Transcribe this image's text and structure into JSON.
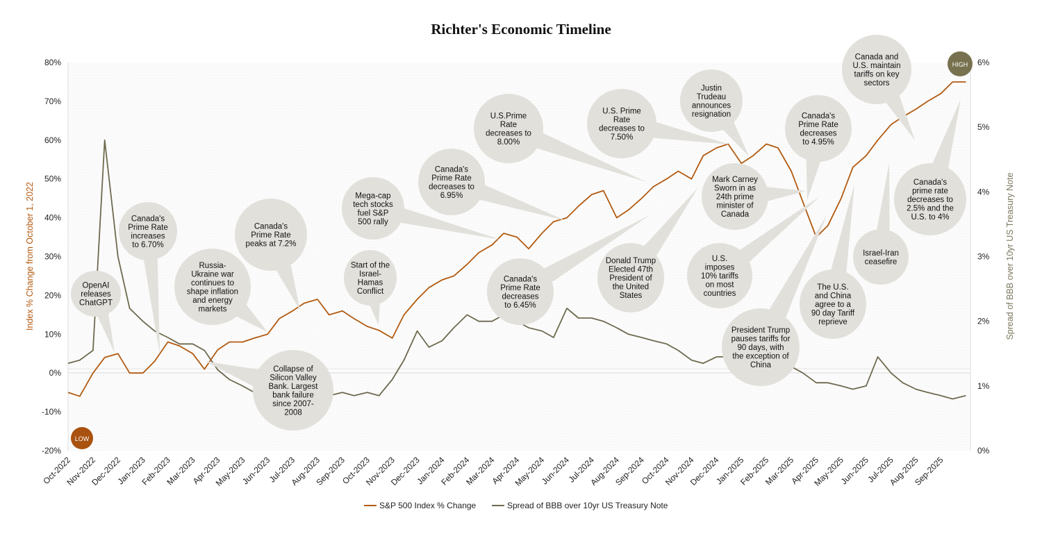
{
  "chart_data": {
    "type": "line",
    "title": "Richter's Economic Timeline",
    "ylabel_left": "Index % Change from October 1, 2022",
    "ylabel_right": "Spread of BBB over 10yr US Treasury Note",
    "ylim_left": [
      -20,
      80
    ],
    "ylim_right": [
      0,
      6
    ],
    "yticks_left": [
      "-20%",
      "-10%",
      "0%",
      "10%",
      "20%",
      "30%",
      "40%",
      "50%",
      "60%",
      "70%",
      "80%"
    ],
    "yticks_right": [
      "0%",
      "1%",
      "2%",
      "3%",
      "4%",
      "5%",
      "6%"
    ],
    "xticks": [
      "Oct-2022",
      "Nov-2022",
      "Dec-2022",
      "Jan-2023",
      "Feb-2023",
      "Mar-2023",
      "Apr-2023",
      "May-2023",
      "Jun-2023",
      "Jul-2023",
      "Aug-2023",
      "Sep-2023",
      "Oct-2023",
      "Nov-2023",
      "Dec-2023",
      "Jan-2024",
      "Feb-2024",
      "Mar-2024",
      "Apr-2024",
      "May-2024",
      "Jun-2024",
      "Jul-2024",
      "Aug-2024",
      "Sep-2024",
      "Oct-2024",
      "Nov-2024",
      "Dec-2024",
      "Jan-2025",
      "Feb-2025",
      "Mar-2025",
      "Apr-2025",
      "May-2025",
      "Jun-2025",
      "Jul-2025",
      "Aug-2025",
      "Sep-2025"
    ],
    "grid": false,
    "legend_position": "bottom",
    "x": [
      "2022-10-01",
      "2022-10-15",
      "2022-11-01",
      "2022-11-15",
      "2022-12-01",
      "2022-12-15",
      "2023-01-01",
      "2023-01-15",
      "2023-02-01",
      "2023-02-15",
      "2023-03-01",
      "2023-03-15",
      "2023-04-01",
      "2023-04-15",
      "2023-05-01",
      "2023-05-15",
      "2023-06-01",
      "2023-06-15",
      "2023-07-01",
      "2023-07-15",
      "2023-08-01",
      "2023-08-15",
      "2023-09-01",
      "2023-09-15",
      "2023-10-01",
      "2023-10-15",
      "2023-11-01",
      "2023-11-15",
      "2023-12-01",
      "2023-12-15",
      "2024-01-01",
      "2024-01-15",
      "2024-02-01",
      "2024-02-15",
      "2024-03-01",
      "2024-03-15",
      "2024-04-01",
      "2024-04-15",
      "2024-05-01",
      "2024-05-15",
      "2024-06-01",
      "2024-06-15",
      "2024-07-01",
      "2024-07-15",
      "2024-08-01",
      "2024-08-15",
      "2024-09-01",
      "2024-09-15",
      "2024-10-01",
      "2024-10-15",
      "2024-11-01",
      "2024-11-15",
      "2024-12-01",
      "2024-12-15",
      "2025-01-01",
      "2025-01-15",
      "2025-02-01",
      "2025-02-15",
      "2025-03-01",
      "2025-03-15",
      "2025-04-01",
      "2025-04-15",
      "2025-05-01",
      "2025-05-15",
      "2025-06-01",
      "2025-06-15",
      "2025-07-01",
      "2025-07-15",
      "2025-08-01",
      "2025-08-15",
      "2025-09-01",
      "2025-09-15",
      "2025-10-01"
    ],
    "series": [
      {
        "name": "S&P 500 Index % Change",
        "axis": "left",
        "color": "#b25a10",
        "values": [
          -5,
          -6,
          0,
          4,
          5,
          0,
          0,
          3,
          8,
          7,
          5,
          1,
          6,
          8,
          8,
          9,
          10,
          14,
          16,
          18,
          19,
          15,
          16,
          14,
          12,
          11,
          9,
          15,
          19,
          22,
          24,
          25,
          28,
          31,
          33,
          36,
          35,
          32,
          36,
          39,
          40,
          43,
          46,
          47,
          40,
          42,
          45,
          48,
          50,
          52,
          50,
          56,
          58,
          59,
          54,
          56,
          59,
          58,
          52,
          44,
          35,
          38,
          45,
          53,
          56,
          60,
          64,
          66,
          68,
          70,
          72,
          75,
          75
        ]
      },
      {
        "name": "Spread of BBB over 10yr US Treasury Note",
        "axis": "right",
        "color": "#6e6a4f",
        "values": [
          1.35,
          1.4,
          1.55,
          4.8,
          3.0,
          2.2,
          2.0,
          1.85,
          1.75,
          1.65,
          1.65,
          1.55,
          1.25,
          1.1,
          1.0,
          0.9,
          0.9,
          0.9,
          0.85,
          0.9,
          0.85,
          0.85,
          0.9,
          0.85,
          0.9,
          0.85,
          1.1,
          1.4,
          1.85,
          1.6,
          1.7,
          1.9,
          2.1,
          2.0,
          2.0,
          2.1,
          2.0,
          1.9,
          1.85,
          1.75,
          2.2,
          2.05,
          2.05,
          2.0,
          1.9,
          1.8,
          1.75,
          1.7,
          1.65,
          1.55,
          1.4,
          1.35,
          1.45,
          1.45,
          1.45,
          1.4,
          1.4,
          1.35,
          1.3,
          1.2,
          1.05,
          1.05,
          1.0,
          0.95,
          1.0,
          1.45,
          1.2,
          1.05,
          0.95,
          0.9,
          0.85,
          0.8,
          0.85
        ]
      }
    ],
    "badges": {
      "low": "LOW",
      "high": "HIGH",
      "low_color": "#a9510f",
      "high_color": "#77714f"
    },
    "annotations": [
      {
        "lines": [
          "OpenAI",
          "releases",
          "ChatGPT"
        ]
      },
      {
        "lines": [
          "Canada's",
          "Prime Rate",
          "increases",
          "to 6.70%"
        ]
      },
      {
        "lines": [
          "Russia-",
          "Ukraine war",
          "continues to",
          "shape inflation",
          "and energy",
          "markets"
        ]
      },
      {
        "lines": [
          "Canada's",
          "Prime Rate",
          "peaks at 7.2%"
        ]
      },
      {
        "lines": [
          "Collapse of",
          "Silicon Valley",
          "Bank. Largest",
          "bank failure",
          "since 2007-",
          "2008"
        ]
      },
      {
        "lines": [
          "Start of the",
          "Israel-",
          "Hamas",
          "Conflict"
        ]
      },
      {
        "lines": [
          "Mega-cap",
          "tech stocks",
          "fuel S&P",
          "500 rally"
        ]
      },
      {
        "lines": [
          "Canada's",
          "Prime Rate",
          "decreases to",
          "6.95%"
        ]
      },
      {
        "lines": [
          "U.S.Prime",
          "Rate",
          "decreases to",
          "8.00%"
        ]
      },
      {
        "lines": [
          "Canada's",
          "Prime Rate",
          "decreases",
          "to 6.45%"
        ]
      },
      {
        "lines": [
          "Donald Trump",
          "Elected 47th",
          "President of",
          "the United",
          "States"
        ]
      },
      {
        "lines": [
          "U.S. Prime",
          "Rate",
          "decreases to",
          "7.50%"
        ]
      },
      {
        "lines": [
          "Justin",
          "Trudeau",
          "announces",
          "resignation"
        ]
      },
      {
        "lines": [
          "Mark Carney",
          "Sworn in as",
          "24th prime",
          "minister of",
          "Canada"
        ]
      },
      {
        "lines": [
          "U.S.",
          "imposes",
          "10% tariffs",
          "on most",
          "countries"
        ]
      },
      {
        "lines": [
          "Canada's",
          "Prime Rate",
          "decreases",
          "to 4.95%"
        ]
      },
      {
        "lines": [
          "President Trump",
          "pauses tariffs for",
          "90 days, with",
          "the exception of",
          "China"
        ]
      },
      {
        "lines": [
          "The U.S.",
          "and China",
          "agree to a",
          "90 day Tariff",
          "reprieve"
        ]
      },
      {
        "lines": [
          "Israel-Iran",
          "ceasefire"
        ]
      },
      {
        "lines": [
          "Canada and",
          "U.S. maintain",
          "tariffs on key",
          "sectors"
        ]
      },
      {
        "lines": [
          "Canada's",
          "prime rate",
          "decreases to",
          "2.5% and the",
          "U.S. to 4%"
        ]
      }
    ]
  }
}
